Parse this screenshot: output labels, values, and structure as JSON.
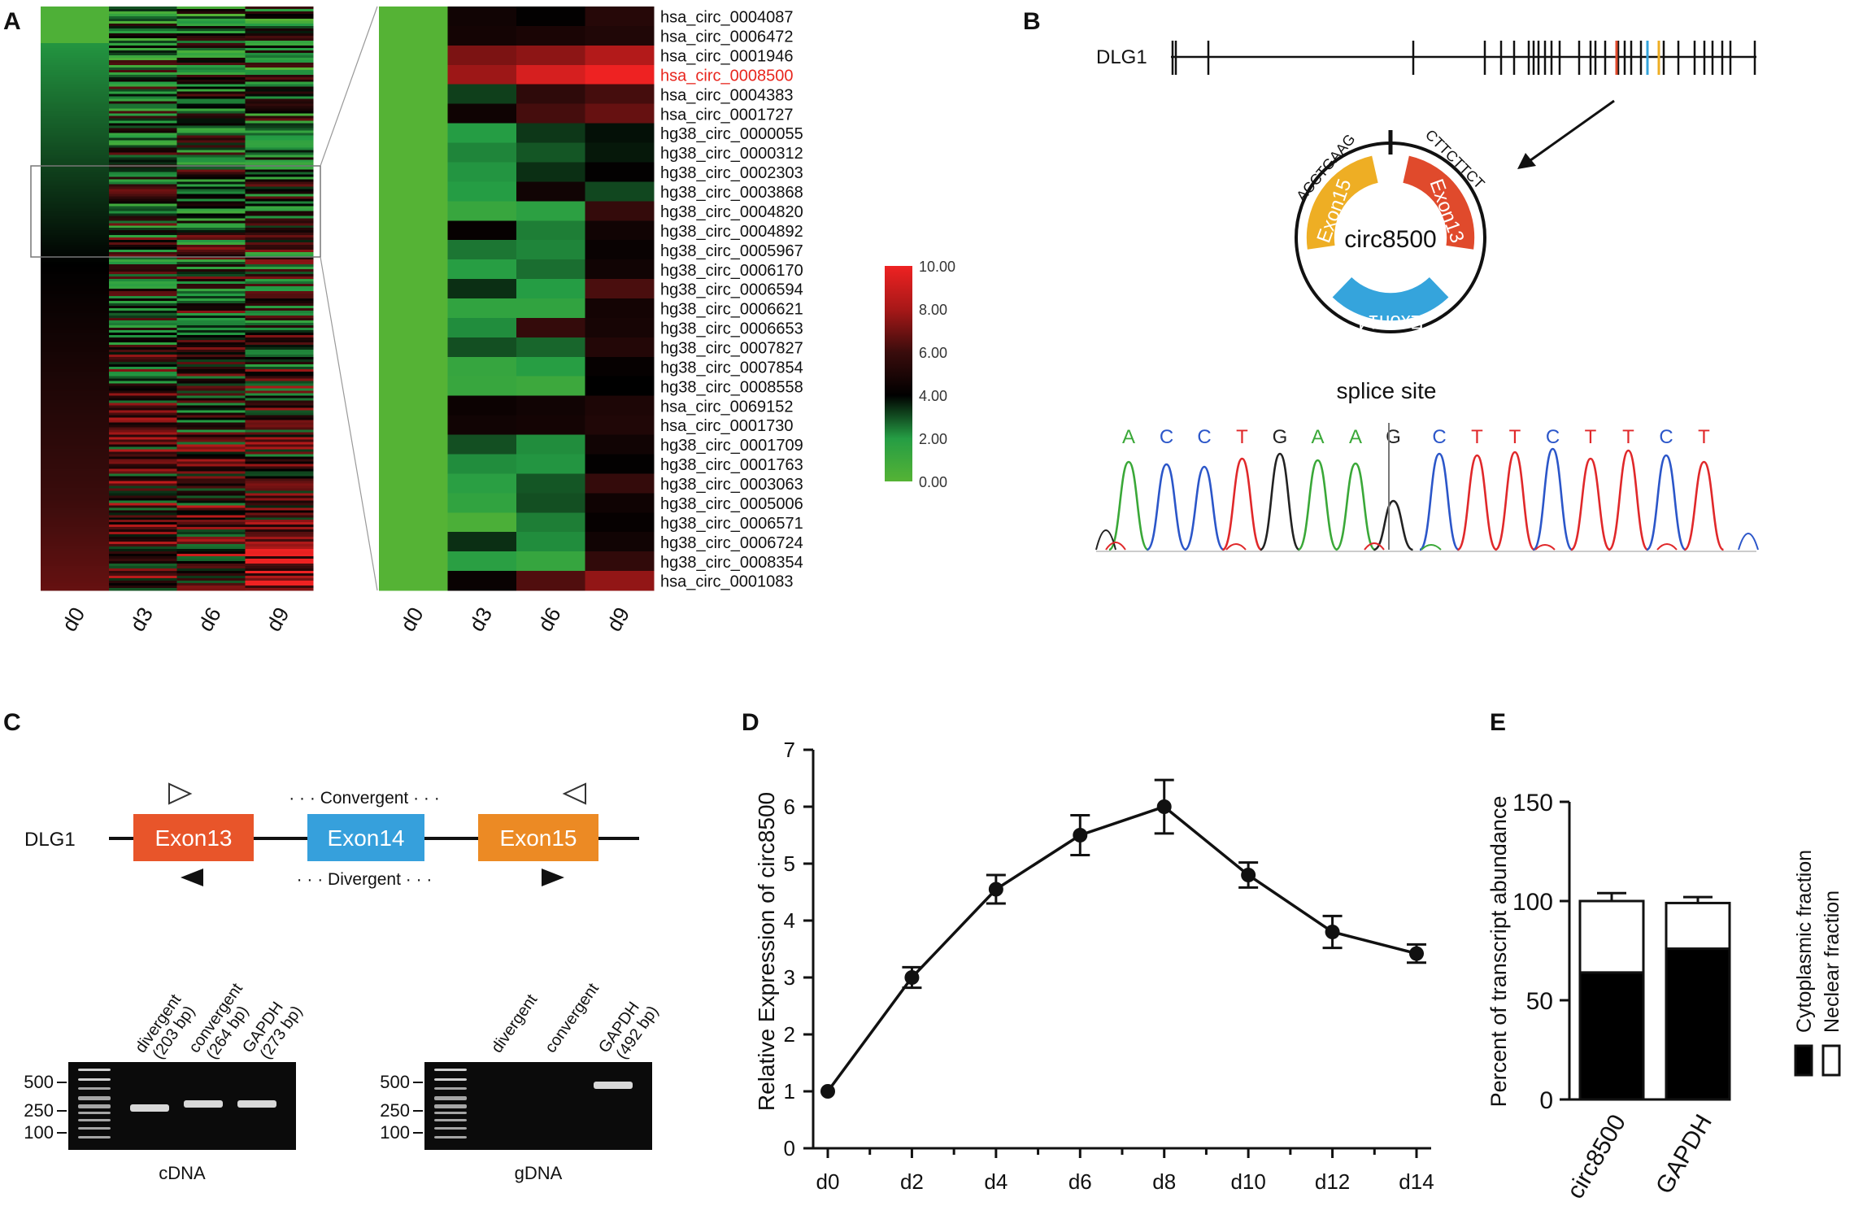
{
  "panels": {
    "A": {
      "letter": "A",
      "columns": [
        "d0",
        "d3",
        "d6",
        "d9"
      ],
      "zoom_columns": [
        "d0",
        "d3",
        "d6",
        "d9"
      ],
      "highlight": "hsa_circ_0008500",
      "highlight_color": "#e8261e",
      "labels": [
        "hsa_circ_0004087",
        "hsa_circ_0006472",
        "hsa_circ_0001946",
        "hsa_circ_0008500",
        "hsa_circ_0004383",
        "hsa_circ_0001727",
        "hg38_circ_0000055",
        "hg38_circ_0000312",
        "hg38_circ_0002303",
        "hg38_circ_0003868",
        "hg38_circ_0004820",
        "hg38_circ_0004892",
        "hg38_circ_0005967",
        "hg38_circ_0006170",
        "hg38_circ_0006594",
        "hg38_circ_0006621",
        "hg38_circ_0006653",
        "hg38_circ_0007827",
        "hg38_circ_0007854",
        "hg38_circ_0008558",
        "hsa_circ_0069152",
        "hsa_circ_0001730",
        "hg38_circ_0001709",
        "hg38_circ_0001763",
        "hg38_circ_0003063",
        "hg38_circ_0005006",
        "hg38_circ_0006571",
        "hg38_circ_0006724",
        "hg38_circ_0008354",
        "hsa_circ_0001083"
      ],
      "zoom_values": [
        [
          0,
          4.6,
          4.1,
          5.3
        ],
        [
          0,
          4.7,
          4.9,
          5.1
        ],
        [
          0,
          7.2,
          7.5,
          8.3
        ],
        [
          0,
          7.8,
          9.3,
          10.0
        ],
        [
          0,
          3.2,
          5.6,
          6.2
        ],
        [
          0,
          4.5,
          6.2,
          6.8
        ],
        [
          0,
          2.0,
          3.3,
          3.8
        ],
        [
          0,
          2.3,
          2.9,
          3.7
        ],
        [
          0,
          2.1,
          3.4,
          4.1
        ],
        [
          0,
          2.0,
          4.6,
          3.1
        ],
        [
          0,
          1.2,
          1.7,
          5.8
        ],
        [
          0,
          4.2,
          2.4,
          4.6
        ],
        [
          0,
          2.5,
          2.3,
          4.3
        ],
        [
          0,
          1.9,
          2.6,
          4.6
        ],
        [
          0,
          3.4,
          2.0,
          6.3
        ],
        [
          0,
          1.5,
          1.5,
          4.7
        ],
        [
          0,
          2.2,
          5.8,
          4.8
        ],
        [
          0,
          3.0,
          2.7,
          5.2
        ],
        [
          0,
          1.3,
          1.9,
          4.2
        ],
        [
          0,
          1.2,
          1.0,
          4.0
        ],
        [
          0,
          4.4,
          4.6,
          5.0
        ],
        [
          0,
          4.6,
          4.7,
          5.1
        ],
        [
          0,
          3.0,
          2.2,
          4.6
        ],
        [
          0,
          2.2,
          2.1,
          4.1
        ],
        [
          0,
          1.8,
          2.9,
          5.8
        ],
        [
          0,
          1.5,
          3.0,
          4.5
        ],
        [
          0,
          0.4,
          2.4,
          4.2
        ],
        [
          0,
          3.4,
          2.2,
          4.6
        ],
        [
          0,
          1.8,
          1.3,
          5.7
        ],
        [
          0,
          4.3,
          6.4,
          7.6
        ]
      ],
      "scale_ticks": [
        "10.00",
        "8.00",
        "6.00",
        "4.00",
        "2.00",
        "0.00"
      ]
    },
    "B": {
      "letter": "B",
      "gene": "DLG1",
      "circ_name": "circ8500",
      "exons": [
        "Exon15",
        "Exon13",
        "Exon14"
      ],
      "seq_left": "ACCTGAAG",
      "seq_right": "CTTCTTCT",
      "splice_label": "splice site",
      "bases": [
        "A",
        "C",
        "C",
        "T",
        "G",
        "A",
        "A",
        "G",
        "C",
        "T",
        "T",
        "C",
        "T",
        "T",
        "C",
        "T"
      ],
      "base_colors": {
        "A": "#3aa838",
        "C": "#2b56c9",
        "T": "#e0282a",
        "G": "#222222"
      },
      "exon_colors": {
        "Exon13": "#e04a2c",
        "Exon14": "#35a4dc",
        "Exon15": "#eeae24"
      }
    },
    "C": {
      "letter": "C",
      "gene": "DLG1",
      "exons": [
        "Exon13",
        "Exon14",
        "Exon15"
      ],
      "exon_colors": [
        "#e8552a",
        "#36a0dc",
        "#ec8a24"
      ],
      "convergent_label": "· · · Convergent · · ·",
      "divergent_label": "· · · Divergent · · ·",
      "cdna_lanes": [
        {
          "name": "divergent",
          "size": "(203 bp)"
        },
        {
          "name": "convergent",
          "size": "(264 bp)"
        },
        {
          "name": "GAPDH",
          "size": "(273 bp)"
        }
      ],
      "gdna_lanes": [
        {
          "name": "divergent",
          "size": ""
        },
        {
          "name": "convergent",
          "size": ""
        },
        {
          "name": "GAPDH",
          "size": "(492 bp)"
        }
      ],
      "ladder_labels": [
        "500",
        "250",
        "100"
      ],
      "cdna_label": "cDNA",
      "gdna_label": "gDNA"
    },
    "D": {
      "letter": "D",
      "chart_data": {
        "type": "line",
        "title": "",
        "xlabel": "",
        "ylabel": "Relative Expression of circ8500",
        "categories": [
          "d0",
          "d2",
          "d4",
          "d6",
          "d8",
          "d10",
          "d12",
          "d14"
        ],
        "values": [
          1.0,
          3.0,
          4.55,
          5.5,
          6.0,
          4.8,
          3.8,
          3.42
        ],
        "errors": [
          0.0,
          0.18,
          0.25,
          0.35,
          0.47,
          0.22,
          0.28,
          0.16
        ],
        "ylim": [
          0,
          7
        ],
        "yticks": [
          "0",
          "1",
          "2",
          "3",
          "4",
          "5",
          "6",
          "7"
        ],
        "grid": false
      }
    },
    "E": {
      "letter": "E",
      "chart_data": {
        "type": "bar",
        "stacked": true,
        "title": "",
        "xlabel": "",
        "ylabel": "Percent of transcript abundance",
        "categories": [
          "circ8500",
          "GAPDH"
        ],
        "series": [
          {
            "name": "Cytoplasmic fraction",
            "values": [
              64,
              76
            ],
            "errors": [
              5,
              6
            ],
            "color": "#000000"
          },
          {
            "name": "Neclear fraction",
            "values": [
              36,
              23
            ],
            "errors": [
              4,
              3
            ],
            "color": "#ffffff"
          }
        ],
        "ylim": [
          0,
          150
        ],
        "yticks": [
          "0",
          "50",
          "100",
          "150"
        ],
        "legend": "right"
      }
    }
  }
}
